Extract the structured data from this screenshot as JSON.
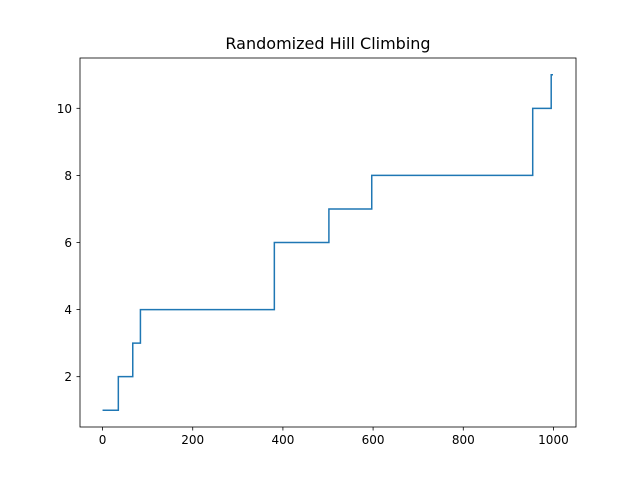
{
  "chart_data": {
    "type": "line",
    "title": "Randomized Hill Climbing",
    "xlabel": "",
    "ylabel": "",
    "xlim": [
      -50,
      1050
    ],
    "ylim": [
      0.5,
      11.5
    ],
    "xticks": [
      0,
      200,
      400,
      600,
      800,
      1000
    ],
    "yticks": [
      2,
      4,
      6,
      8,
      10
    ],
    "grid": false,
    "series": [
      {
        "color": "#1f77b4",
        "step": "post",
        "points": [
          [
            0,
            1
          ],
          [
            35,
            2
          ],
          [
            67,
            3
          ],
          [
            84,
            4
          ],
          [
            381,
            6
          ],
          [
            502,
            7
          ],
          [
            597,
            8
          ],
          [
            954,
            10
          ],
          [
            995,
            11
          ],
          [
            999,
            11
          ]
        ]
      }
    ]
  }
}
